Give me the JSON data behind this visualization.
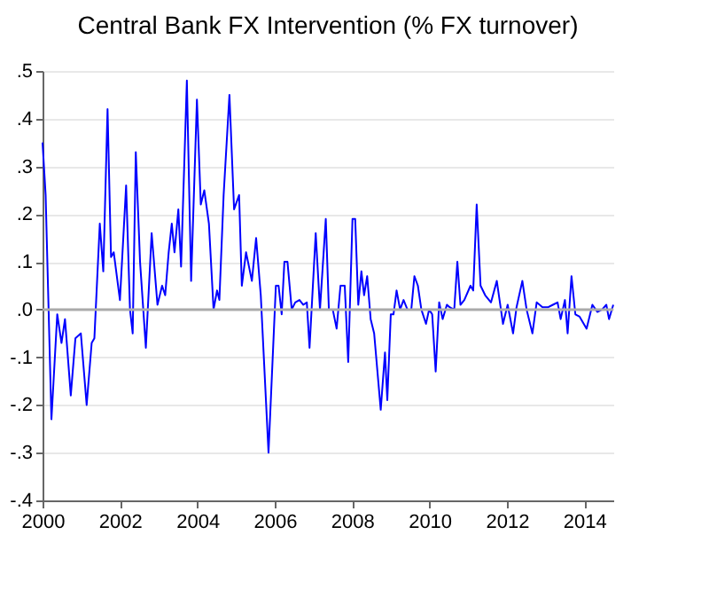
{
  "chart_data": {
    "type": "line",
    "title": "Central Bank FX Intervention (% FX turnover)",
    "x": [
      2000.0,
      2000.08,
      2000.23,
      2000.38,
      2000.49,
      2000.58,
      2000.73,
      2000.85,
      2000.99,
      2001.14,
      2001.27,
      2001.34,
      2001.48,
      2001.57,
      2001.68,
      2001.77,
      2001.84,
      2002.0,
      2002.16,
      2002.26,
      2002.33,
      2002.41,
      2002.52,
      2002.67,
      2002.82,
      2002.97,
      2003.09,
      2003.17,
      2003.26,
      2003.34,
      2003.41,
      2003.51,
      2003.58,
      2003.73,
      2003.84,
      2003.99,
      2004.09,
      2004.18,
      2004.3,
      2004.42,
      2004.51,
      2004.57,
      2004.68,
      2004.83,
      2004.95,
      2005.08,
      2005.15,
      2005.26,
      2005.41,
      2005.52,
      2005.64,
      2005.84,
      2006.03,
      2006.1,
      2006.18,
      2006.25,
      2006.33,
      2006.44,
      2006.53,
      2006.64,
      2006.74,
      2006.83,
      2006.9,
      2007.06,
      2007.17,
      2007.32,
      2007.4,
      2007.5,
      2007.6,
      2007.7,
      2007.81,
      2007.9,
      2008.01,
      2008.08,
      2008.16,
      2008.24,
      2008.31,
      2008.39,
      2008.48,
      2008.57,
      2008.74,
      2008.85,
      2008.91,
      2009.0,
      2009.07,
      2009.15,
      2009.24,
      2009.33,
      2009.43,
      2009.53,
      2009.61,
      2009.7,
      2009.79,
      2009.91,
      2009.99,
      2010.07,
      2010.16,
      2010.25,
      2010.34,
      2010.45,
      2010.52,
      2010.64,
      2010.72,
      2010.8,
      2010.9,
      2011.06,
      2011.13,
      2011.22,
      2011.32,
      2011.44,
      2011.59,
      2011.74,
      2011.9,
      2012.02,
      2012.16,
      2012.25,
      2012.4,
      2012.51,
      2012.66,
      2012.77,
      2012.92,
      2013.07,
      2013.19,
      2013.31,
      2013.39,
      2013.5,
      2013.57,
      2013.67,
      2013.77,
      2013.88,
      2014.06,
      2014.21,
      2014.34,
      2014.46,
      2014.57,
      2014.64,
      2014.75
    ],
    "series": [
      {
        "color": "#0000ff",
        "values": [
          0.35,
          0.24,
          -0.23,
          -0.01,
          -0.07,
          -0.02,
          -0.18,
          -0.06,
          -0.05,
          -0.2,
          -0.07,
          -0.06,
          0.18,
          0.08,
          0.42,
          0.11,
          0.12,
          0.02,
          0.26,
          0.0,
          -0.05,
          0.33,
          0.1,
          -0.08,
          0.16,
          0.01,
          0.05,
          0.03,
          0.12,
          0.18,
          0.12,
          0.21,
          0.09,
          0.48,
          0.06,
          0.44,
          0.22,
          0.25,
          0.18,
          0.0,
          0.04,
          0.02,
          0.24,
          0.45,
          0.21,
          0.24,
          0.05,
          0.12,
          0.06,
          0.15,
          0.03,
          -0.3,
          0.05,
          0.05,
          -0.01,
          0.1,
          0.1,
          0.0,
          0.015,
          0.02,
          0.01,
          0.015,
          -0.08,
          0.16,
          0.0,
          0.19,
          0.0,
          0.0,
          -0.04,
          0.05,
          0.05,
          -0.11,
          0.19,
          0.19,
          0.01,
          0.08,
          0.03,
          0.07,
          -0.02,
          -0.05,
          -0.21,
          -0.09,
          -0.19,
          -0.01,
          -0.01,
          0.04,
          0.0,
          0.02,
          0.0,
          0.0,
          0.07,
          0.05,
          0.0,
          -0.03,
          0.0,
          -0.01,
          -0.13,
          0.015,
          -0.02,
          0.01,
          0.005,
          0.0,
          0.1,
          0.01,
          0.02,
          0.05,
          0.04,
          0.22,
          0.05,
          0.03,
          0.015,
          0.06,
          -0.03,
          0.01,
          -0.05,
          0.005,
          0.06,
          0.0,
          -0.05,
          0.015,
          0.005,
          0.005,
          0.01,
          0.015,
          -0.02,
          0.02,
          -0.05,
          0.07,
          -0.01,
          -0.015,
          -0.04,
          0.01,
          -0.005,
          0.0,
          0.01,
          -0.02,
          0.01
        ]
      }
    ],
    "xlim": [
      2000,
      2014.75
    ],
    "xticks": [
      2000,
      2002,
      2004,
      2006,
      2008,
      2010,
      2012,
      2014
    ],
    "ylim": [
      -0.4,
      0.5
    ],
    "yticks": [
      {
        "value": -0.4,
        "label": "-.4"
      },
      {
        "value": -0.3,
        "label": "-.3"
      },
      {
        "value": -0.2,
        "label": "-.2"
      },
      {
        "value": -0.1,
        "label": "-.1"
      },
      {
        "value": 0,
        "label": ".0"
      },
      {
        "value": 0.1,
        "label": ".1"
      },
      {
        "value": 0.2,
        "label": ".2"
      },
      {
        "value": 0.3,
        "label": ".3"
      },
      {
        "value": 0.4,
        "label": ".4"
      },
      {
        "value": 0.5,
        "label": ".5"
      }
    ],
    "grid": "y",
    "line_style": "solid",
    "marker": "none",
    "ref_lines": [
      {
        "axis": "y",
        "value": 0,
        "color": "#aaaaaa"
      }
    ]
  }
}
